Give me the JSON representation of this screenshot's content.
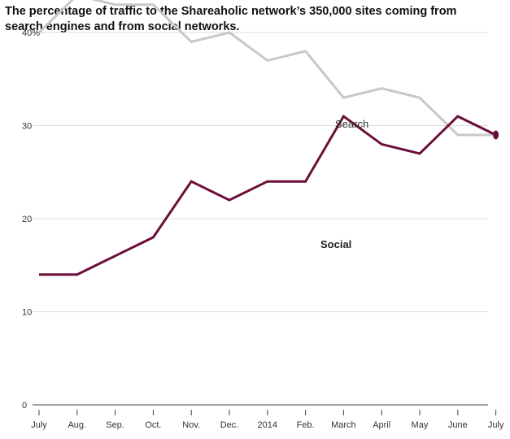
{
  "chart_data": {
    "type": "line",
    "title": "The percentage of traffic to the Shareaholic network’s 350,000 sites coming from search engines and from social networks.",
    "categories": [
      "July",
      "Aug.",
      "Sep.",
      "Oct.",
      "Nov.",
      "Dec.",
      "2014",
      "Feb.",
      "March",
      "April",
      "May",
      "June",
      "July"
    ],
    "series": [
      {
        "name": "Search",
        "color": "#c8c8c4",
        "values": [
          40,
          44,
          43,
          43,
          39,
          40,
          37,
          38,
          33,
          34,
          33,
          29,
          29
        ]
      },
      {
        "name": "Social",
        "color": "#6b0f3a",
        "values": [
          14,
          14,
          16,
          18,
          24,
          22,
          24,
          24,
          31,
          28,
          27,
          31,
          29
        ]
      }
    ],
    "yticks": [
      {
        "value": 0,
        "label": "0"
      },
      {
        "value": 10,
        "label": "10"
      },
      {
        "value": 20,
        "label": "20"
      },
      {
        "value": 30,
        "label": "30"
      },
      {
        "value": 40,
        "label": "40%"
      }
    ],
    "ylim": [
      0,
      46
    ],
    "grid": true,
    "xlabel": "",
    "ylabel": "",
    "end_marker_series": "Social"
  }
}
